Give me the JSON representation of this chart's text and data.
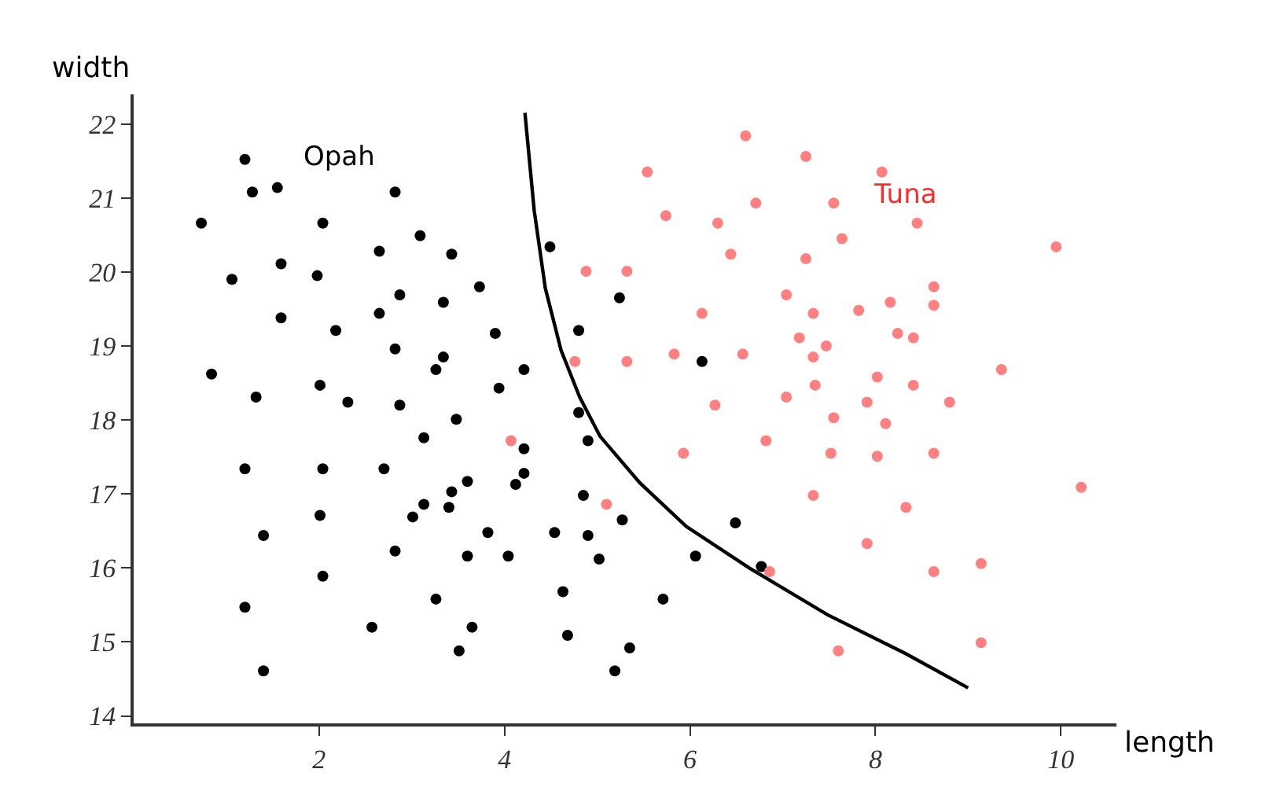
{
  "chart_data": {
    "type": "scatter",
    "xlabel": "length",
    "ylabel": "width",
    "xlim": [
      0,
      10.6
    ],
    "ylim": [
      13.9,
      22.4
    ],
    "xticks": [
      2,
      4,
      6,
      8,
      10
    ],
    "yticks": [
      14,
      15,
      16,
      17,
      18,
      19,
      20,
      21,
      22
    ],
    "legend": false,
    "marker": "circle",
    "series": [
      {
        "name": "Opah",
        "color": "#000000",
        "x": [
          1.2,
          1.28,
          1.55,
          2.82,
          0.73,
          2.04,
          3.09,
          2.65,
          3.43,
          4.49,
          1.06,
          1.59,
          1.98,
          2.87,
          3.34,
          3.73,
          5.24,
          1.59,
          2.18,
          2.65,
          3.9,
          2.82,
          3.34,
          3.26,
          4.21,
          4.8,
          0.84,
          1.32,
          2.01,
          2.31,
          2.87,
          3.94,
          3.48,
          4.8,
          3.13,
          1.2,
          2.04,
          2.7,
          4.21,
          4.21,
          4.12,
          3.6,
          3.43,
          3.13,
          3.4,
          3.01,
          2.01,
          1.4,
          3.82,
          4.54,
          4.9,
          4.85,
          4.9,
          5.27,
          2.82,
          3.6,
          4.04,
          5.02,
          2.04,
          3.26,
          4.63,
          1.2,
          2.57,
          3.65,
          3.51,
          4.68,
          1.4,
          5.19,
          6.49,
          6.06,
          6.77,
          5.71,
          5.35,
          6.13
        ],
        "values": [
          21.52,
          21.08,
          21.14,
          21.08,
          20.66,
          20.66,
          20.49,
          20.28,
          20.24,
          20.34,
          19.9,
          20.11,
          19.95,
          19.69,
          19.59,
          19.8,
          19.65,
          19.38,
          19.21,
          19.44,
          19.17,
          18.96,
          18.85,
          18.68,
          18.68,
          19.21,
          18.62,
          18.31,
          18.47,
          18.24,
          18.2,
          18.43,
          18.01,
          18.1,
          17.76,
          17.34,
          17.34,
          17.34,
          17.61,
          17.28,
          17.13,
          17.17,
          17.03,
          16.86,
          16.82,
          16.69,
          16.71,
          16.44,
          16.48,
          16.48,
          16.44,
          16.98,
          17.72,
          16.65,
          16.23,
          16.16,
          16.16,
          16.12,
          15.89,
          15.58,
          15.68,
          15.47,
          15.2,
          15.2,
          14.88,
          15.09,
          14.61,
          14.61,
          16.61,
          16.16,
          16.02,
          15.58,
          14.92,
          18.79
        ]
      },
      {
        "name": "Tuna",
        "color": "#ff8080",
        "x": [
          4.88,
          4.76,
          4.07,
          5.1,
          7.55,
          8.11,
          5.93,
          6.82,
          7.52,
          8.02,
          8.63,
          10.22,
          7.33,
          8.33,
          7.91,
          6.86,
          8.63,
          9.14,
          7.6,
          9.14,
          6.6,
          7.25,
          5.54,
          8.07,
          5.74,
          6.71,
          7.55,
          6.3,
          8.45,
          7.64,
          6.44,
          7.25,
          9.95,
          5.32,
          7.04,
          8.63,
          6.13,
          7.33,
          7.82,
          8.16,
          8.63,
          7.18,
          7.47,
          8.24,
          8.41,
          5.32,
          5.83,
          6.57,
          7.33,
          9.36,
          7.35,
          8.02,
          8.41,
          6.27,
          7.04,
          7.91,
          8.8
        ],
        "values": [
          20.01,
          18.79,
          17.72,
          16.86,
          18.03,
          17.95,
          17.55,
          17.72,
          17.55,
          17.51,
          17.55,
          17.09,
          16.98,
          16.82,
          16.33,
          15.95,
          15.95,
          16.06,
          14.88,
          14.99,
          21.84,
          21.56,
          21.35,
          21.35,
          20.76,
          20.93,
          20.93,
          20.66,
          20.66,
          20.45,
          20.24,
          20.18,
          20.34,
          20.01,
          19.69,
          19.8,
          19.44,
          19.44,
          19.48,
          19.59,
          19.55,
          19.11,
          19.0,
          19.17,
          19.11,
          18.79,
          18.89,
          18.89,
          18.85,
          18.68,
          18.47,
          18.58,
          18.47,
          18.2,
          18.31,
          18.24,
          18.24
        ]
      },
      {
        "type": "line",
        "color": "#000000",
        "marker": "none",
        "x": [
          4.22,
          4.32,
          4.44,
          4.61,
          4.81,
          5.03,
          5.46,
          5.96,
          6.64,
          7.48,
          8.33,
          9.0
        ],
        "values": [
          22.15,
          20.83,
          19.78,
          18.94,
          18.31,
          17.78,
          17.15,
          16.56,
          16.0,
          15.37,
          14.84,
          14.38
        ]
      }
    ]
  }
}
